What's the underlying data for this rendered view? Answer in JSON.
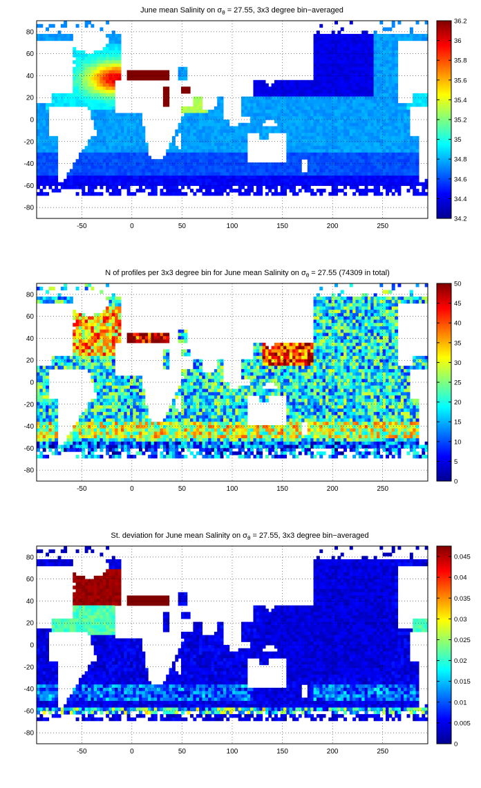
{
  "panels": [
    {
      "title_pre": "June mean Salinity on σ",
      "title_sub": "θ",
      "title_post": " = 27.55, 3x3 degree bin−averaged",
      "colorbar_ticks": [
        "34.2",
        "34.4",
        "34.6",
        "34.8",
        "35",
        "35.2",
        "35.4",
        "35.6",
        "35.8",
        "36",
        "36.2"
      ],
      "field": "salinity"
    },
    {
      "title_pre": "N of profiles per 3x3 degree bin for June mean Salinity on σ",
      "title_sub": "θ",
      "title_post": " = 27.55 (74309 in total)",
      "colorbar_ticks": [
        "0",
        "5",
        "10",
        "15",
        "20",
        "25",
        "30",
        "35",
        "40",
        "45",
        "50"
      ],
      "field": "count"
    },
    {
      "title_pre": "St. deviation for June mean Salinity on σ",
      "title_sub": "θ",
      "title_post": " = 27.55, 3x3 degree bin−averaged",
      "colorbar_ticks": [
        "0",
        "0.005",
        "0.01",
        "0.015",
        "0.02",
        "0.025",
        "0.03",
        "0.035",
        "0.04",
        "0.045"
      ],
      "field": "std"
    }
  ],
  "x_ticks": [
    "-50",
    "0",
    "50",
    "100",
    "150",
    "200",
    "250"
  ],
  "y_ticks": [
    "80",
    "60",
    "40",
    "20",
    "0",
    "-20",
    "-40",
    "-60",
    "-80"
  ],
  "colormap": "jet"
}
